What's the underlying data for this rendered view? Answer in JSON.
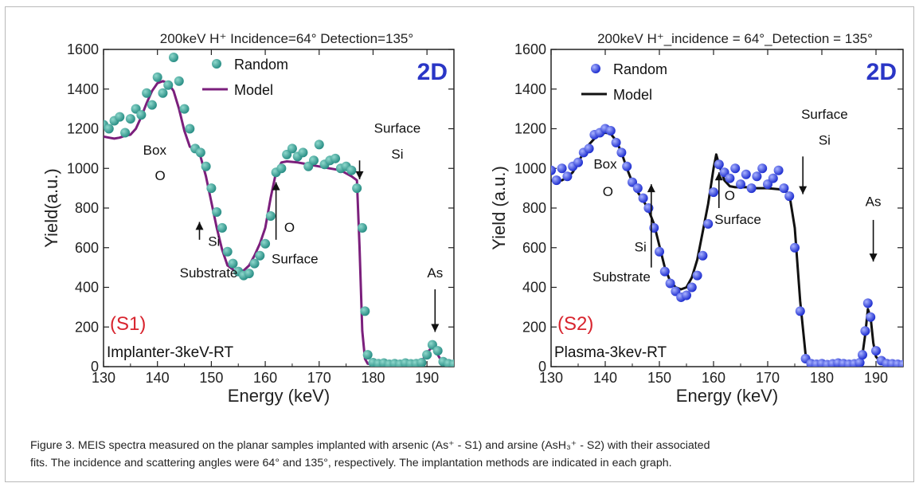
{
  "chart_data": [
    {
      "type": "scatter",
      "title": "200keV H⁺  Incidence=64°  Detection=135°",
      "xlabel": "Energy (keV)",
      "ylabel": "Yield(a.u.)",
      "xlim": [
        130,
        195
      ],
      "ylim": [
        0,
        1600
      ],
      "xticks": [
        "130",
        "140",
        "150",
        "160",
        "170",
        "180",
        "190"
      ],
      "yticks": [
        "0",
        "200",
        "400",
        "600",
        "800",
        "1000",
        "1200",
        "1400",
        "1600"
      ],
      "badge": "2D",
      "sample": "(S1)",
      "method": "Implanter-3keV-RT",
      "legend": {
        "position": "top-left",
        "random": "Random",
        "model": "Model"
      },
      "colors": {
        "points": "#2a8f86",
        "points_highlight": "#8fd8cc",
        "model": "#7b1f7c",
        "sample": "#d8242e",
        "badge": "#2a36c6"
      },
      "annotations": [
        {
          "text": "Box",
          "x": 139.5,
          "y": 1070
        },
        {
          "text": "O",
          "x": 140.5,
          "y": 940
        },
        {
          "text": "Surface",
          "x": 184.5,
          "y": 1180
        },
        {
          "text": "Si",
          "x": 184.5,
          "y": 1050
        },
        {
          "text": "Si",
          "x": 150.5,
          "y": 610
        },
        {
          "text": "Substrate",
          "x": 149.5,
          "y": 450
        },
        {
          "text": "O",
          "x": 164.5,
          "y": 680
        },
        {
          "text": "Surface",
          "x": 165.5,
          "y": 520
        },
        {
          "text": "As",
          "x": 191.5,
          "y": 450
        }
      ],
      "arrows": [
        {
          "x": 177.5,
          "y_from": 1040,
          "y_to": 945,
          "dir": "down"
        },
        {
          "x": 147.8,
          "y_from": 640,
          "y_to": 730,
          "dir": "up"
        },
        {
          "x": 162.0,
          "y_from": 640,
          "y_to": 930,
          "dir": "up"
        },
        {
          "x": 191.5,
          "y_from": 390,
          "y_to": 175,
          "dir": "down"
        }
      ],
      "series": [
        {
          "name": "Random",
          "kind": "points",
          "x": [
            130,
            131,
            132,
            133,
            134,
            135,
            136,
            137,
            138,
            139,
            140,
            141,
            142,
            143,
            144,
            145,
            146,
            147,
            148,
            149,
            150,
            151,
            152,
            153,
            154,
            155,
            156,
            157,
            158,
            159,
            160,
            161,
            162,
            163,
            164,
            165,
            166,
            167,
            168,
            169,
            170,
            171,
            172,
            173,
            174,
            175,
            176,
            177,
            178,
            178.5,
            179,
            180,
            181,
            182,
            183,
            184,
            185,
            186,
            187,
            188,
            189,
            190,
            191,
            192,
            193,
            194,
            195
          ],
          "y": [
            1220,
            1200,
            1240,
            1260,
            1180,
            1250,
            1300,
            1270,
            1380,
            1320,
            1460,
            1380,
            1420,
            1560,
            1440,
            1300,
            1200,
            1100,
            1080,
            1010,
            900,
            780,
            700,
            580,
            520,
            480,
            460,
            470,
            520,
            560,
            620,
            760,
            980,
            1000,
            1070,
            1100,
            1060,
            1080,
            1010,
            1040,
            1120,
            1020,
            1040,
            1050,
            1000,
            1010,
            990,
            900,
            700,
            280,
            60,
            20,
            15,
            18,
            12,
            15,
            12,
            18,
            14,
            15,
            20,
            60,
            110,
            80,
            25,
            15,
            12
          ]
        },
        {
          "name": "Model",
          "kind": "line",
          "x": [
            130,
            131,
            132,
            133,
            134,
            135,
            136,
            137,
            138,
            139,
            140,
            141,
            142,
            143,
            144,
            145,
            146,
            147,
            148,
            149,
            150,
            151,
            152,
            153,
            154,
            155,
            156,
            157,
            158,
            159,
            160,
            161,
            162,
            163,
            164,
            166,
            168,
            170,
            172,
            174,
            175,
            176,
            177,
            177.5,
            178,
            178.5,
            179,
            180,
            182,
            184,
            186,
            188,
            189,
            190,
            191,
            192,
            193,
            194,
            195
          ],
          "y": [
            1160,
            1155,
            1150,
            1155,
            1165,
            1170,
            1200,
            1260,
            1330,
            1390,
            1430,
            1440,
            1430,
            1390,
            1300,
            1190,
            1110,
            1090,
            1060,
            960,
            830,
            700,
            590,
            510,
            490,
            480,
            485,
            510,
            560,
            620,
            700,
            850,
            980,
            1030,
            1035,
            1030,
            1020,
            1010,
            1000,
            990,
            975,
            960,
            940,
            600,
            180,
            40,
            15,
            10,
            10,
            10,
            10,
            12,
            25,
            70,
            100,
            60,
            15,
            10,
            10
          ]
        }
      ]
    },
    {
      "type": "scatter",
      "title": "200keV H⁺_incidence = 64°_Detection = 135°",
      "xlabel": "Energy (keV)",
      "ylabel": "Yield (a.u.)",
      "xlim": [
        130,
        195
      ],
      "ylim": [
        0,
        1600
      ],
      "xticks": [
        "130",
        "140",
        "150",
        "160",
        "170",
        "180",
        "190"
      ],
      "yticks": [
        "0",
        "200",
        "400",
        "600",
        "800",
        "1000",
        "1200",
        "1400",
        "1600"
      ],
      "badge": "2D",
      "sample": "(S2)",
      "method": "Plasma-3kev-RT",
      "legend": {
        "position": "top-left",
        "random": "Random",
        "model": "Model"
      },
      "colors": {
        "points": "#1f2fd0",
        "points_highlight": "#a9b3ff",
        "model": "#111111",
        "sample": "#d8242e",
        "badge": "#2a36c6"
      },
      "annotations": [
        {
          "text": "Box",
          "x": 140.0,
          "y": 1000
        },
        {
          "text": "O",
          "x": 140.5,
          "y": 860
        },
        {
          "text": "Surface",
          "x": 180.5,
          "y": 1250
        },
        {
          "text": "Si",
          "x": 180.5,
          "y": 1120
        },
        {
          "text": "O",
          "x": 163.0,
          "y": 840
        },
        {
          "text": "Surface",
          "x": 164.5,
          "y": 720
        },
        {
          "text": "Si",
          "x": 146.5,
          "y": 580
        },
        {
          "text": "Substrate",
          "x": 143.0,
          "y": 430
        },
        {
          "text": "As",
          "x": 189.5,
          "y": 810
        }
      ],
      "arrows": [
        {
          "x": 176.5,
          "y_from": 1060,
          "y_to": 870,
          "dir": "down"
        },
        {
          "x": 161.0,
          "y_from": 800,
          "y_to": 980,
          "dir": "up"
        },
        {
          "x": 148.5,
          "y_from": 500,
          "y_to": 920,
          "dir": "up"
        },
        {
          "x": 189.5,
          "y_from": 740,
          "y_to": 530,
          "dir": "down"
        }
      ],
      "series": [
        {
          "name": "Random",
          "kind": "points",
          "x": [
            130,
            131,
            132,
            133,
            134,
            135,
            136,
            137,
            138,
            139,
            140,
            141,
            142,
            143,
            144,
            145,
            146,
            147,
            148,
            149,
            150,
            151,
            152,
            153,
            154,
            155,
            156,
            157,
            158,
            159,
            160,
            161,
            162,
            163,
            164,
            165,
            166,
            167,
            168,
            169,
            170,
            171,
            172,
            173,
            174,
            175,
            176,
            177,
            178,
            179,
            180,
            181,
            182,
            183,
            184,
            185,
            186,
            187,
            187.5,
            188,
            188.5,
            189,
            190,
            191,
            192,
            193,
            194,
            195
          ],
          "y": [
            990,
            940,
            1000,
            960,
            1010,
            1030,
            1080,
            1100,
            1170,
            1180,
            1200,
            1190,
            1130,
            1080,
            1010,
            930,
            900,
            850,
            800,
            700,
            580,
            480,
            420,
            380,
            350,
            360,
            400,
            460,
            560,
            720,
            880,
            1020,
            980,
            950,
            1000,
            920,
            970,
            900,
            960,
            1000,
            920,
            950,
            990,
            900,
            860,
            600,
            280,
            40,
            15,
            12,
            15,
            10,
            14,
            18,
            15,
            12,
            14,
            20,
            60,
            180,
            320,
            250,
            80,
            30,
            15,
            14,
            12,
            10
          ]
        },
        {
          "name": "Model",
          "kind": "line",
          "x": [
            130,
            131,
            132,
            133,
            134,
            135,
            136,
            137,
            138,
            139,
            140,
            141,
            142,
            143,
            144,
            145,
            146,
            147,
            148,
            149,
            150,
            151,
            152,
            153,
            154,
            155,
            156,
            157,
            158,
            159,
            160,
            160.5,
            161,
            162,
            163,
            164,
            166,
            168,
            170,
            172,
            173,
            174,
            175,
            176,
            177,
            178,
            180,
            182,
            184,
            186,
            187,
            187.5,
            188,
            188.5,
            189,
            189.5,
            190,
            191,
            192,
            195
          ],
          "y": [
            940,
            935,
            940,
            955,
            980,
            1030,
            1080,
            1120,
            1150,
            1170,
            1180,
            1175,
            1140,
            1080,
            1000,
            930,
            880,
            840,
            790,
            720,
            610,
            500,
            430,
            400,
            390,
            400,
            450,
            540,
            680,
            820,
            1000,
            1070,
            1020,
            940,
            910,
            905,
            905,
            900,
            900,
            895,
            890,
            870,
            700,
            330,
            60,
            20,
            15,
            15,
            15,
            15,
            20,
            60,
            160,
            290,
            250,
            120,
            50,
            20,
            15,
            15
          ]
        }
      ]
    }
  ],
  "caption": {
    "line1": "Figure 3. MEIS spectra measured on the planar samples implanted with arsenic (As⁺ - S1) and arsine (AsH₃⁺ - S2) with their associated",
    "line2": "fits. The incidence and scattering angles were 64° and 135°, respectively. The implantation methods are indicated in each graph."
  }
}
